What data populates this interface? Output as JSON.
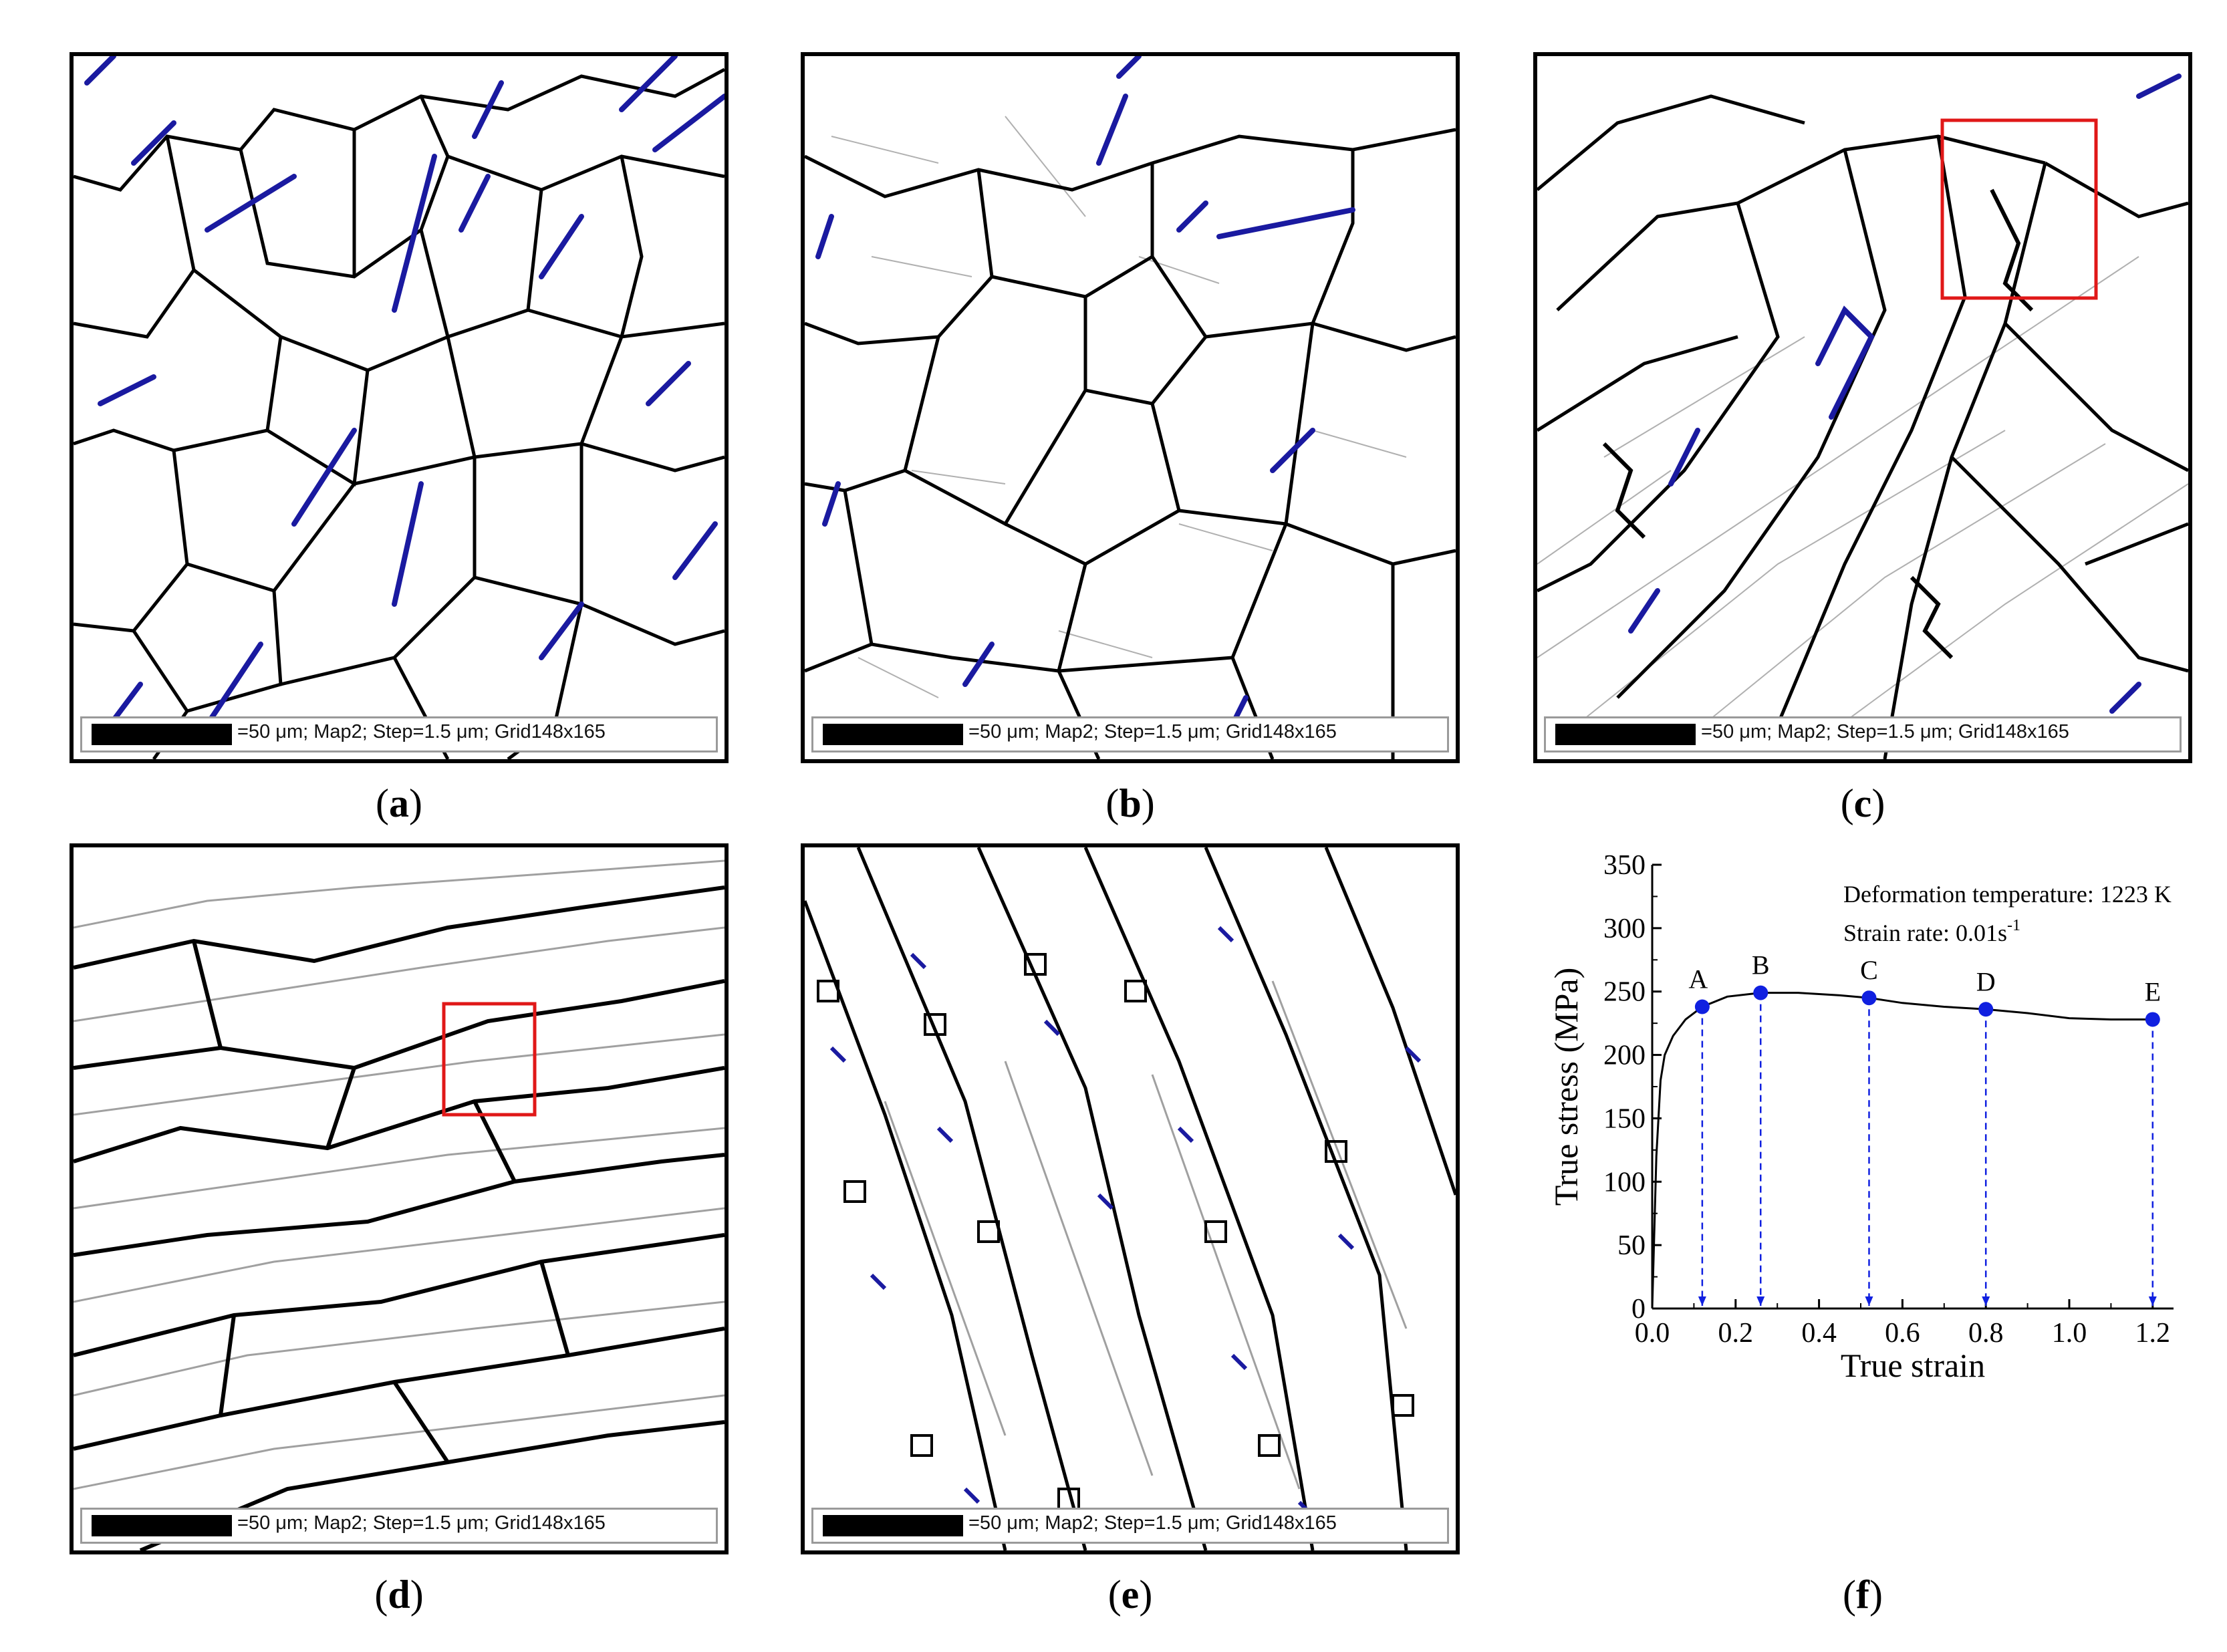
{
  "panels": [
    {
      "id": "a",
      "label": "a",
      "infobar": "=50 μm; Map2; Step=1.5 μm; Grid148x165"
    },
    {
      "id": "b",
      "label": "b",
      "infobar": "=50 μm; Map2; Step=1.5 μm; Grid148x165"
    },
    {
      "id": "c",
      "label": "c",
      "infobar": "=50 μm; Map2; Step=1.5 μm; Grid148x165"
    },
    {
      "id": "d",
      "label": "d",
      "infobar": "=50 μm; Map2; Step=1.5 μm; Grid148x165"
    },
    {
      "id": "e",
      "label": "e",
      "infobar": "=50 μm; Map2; Step=1.5 μm; Grid148x165"
    },
    {
      "id": "f",
      "label": "f"
    }
  ],
  "colors": {
    "boundary": "#000000",
    "twin": "#1a1aa0",
    "subgrain": "#a8a8a8",
    "highlight": "#e01818",
    "marker": "#1020e0"
  },
  "chart_data": {
    "type": "line",
    "xlabel": "True strain",
    "ylabel": "True stress (MPa)",
    "xlim": [
      0.0,
      1.25
    ],
    "ylim": [
      0,
      350
    ],
    "xticks": [
      "0.0",
      "0.2",
      "0.4",
      "0.6",
      "0.8",
      "1.0",
      "1.2"
    ],
    "yticks": [
      "0",
      "50",
      "100",
      "150",
      "200",
      "250",
      "300",
      "350"
    ],
    "annotation_temp": "Deformation temperature: 1223 K",
    "annotation_rate": "Strain rate: 0.01s",
    "annotation_rate_sup": "-1",
    "series": [
      {
        "x": [
          0.0,
          0.01,
          0.02,
          0.03,
          0.05,
          0.08,
          0.12,
          0.18,
          0.26,
          0.35,
          0.45,
          0.52,
          0.6,
          0.7,
          0.8,
          0.9,
          1.0,
          1.1,
          1.2
        ],
        "y": [
          0,
          120,
          180,
          200,
          215,
          228,
          238,
          246,
          249,
          249,
          247,
          245,
          241,
          238,
          236,
          233,
          229,
          228,
          228
        ]
      }
    ],
    "points": [
      {
        "label": "A",
        "x": 0.12,
        "y": 238
      },
      {
        "label": "B",
        "x": 0.26,
        "y": 249
      },
      {
        "label": "C",
        "x": 0.52,
        "y": 245
      },
      {
        "label": "D",
        "x": 0.8,
        "y": 236
      },
      {
        "label": "E",
        "x": 1.2,
        "y": 228
      }
    ]
  }
}
